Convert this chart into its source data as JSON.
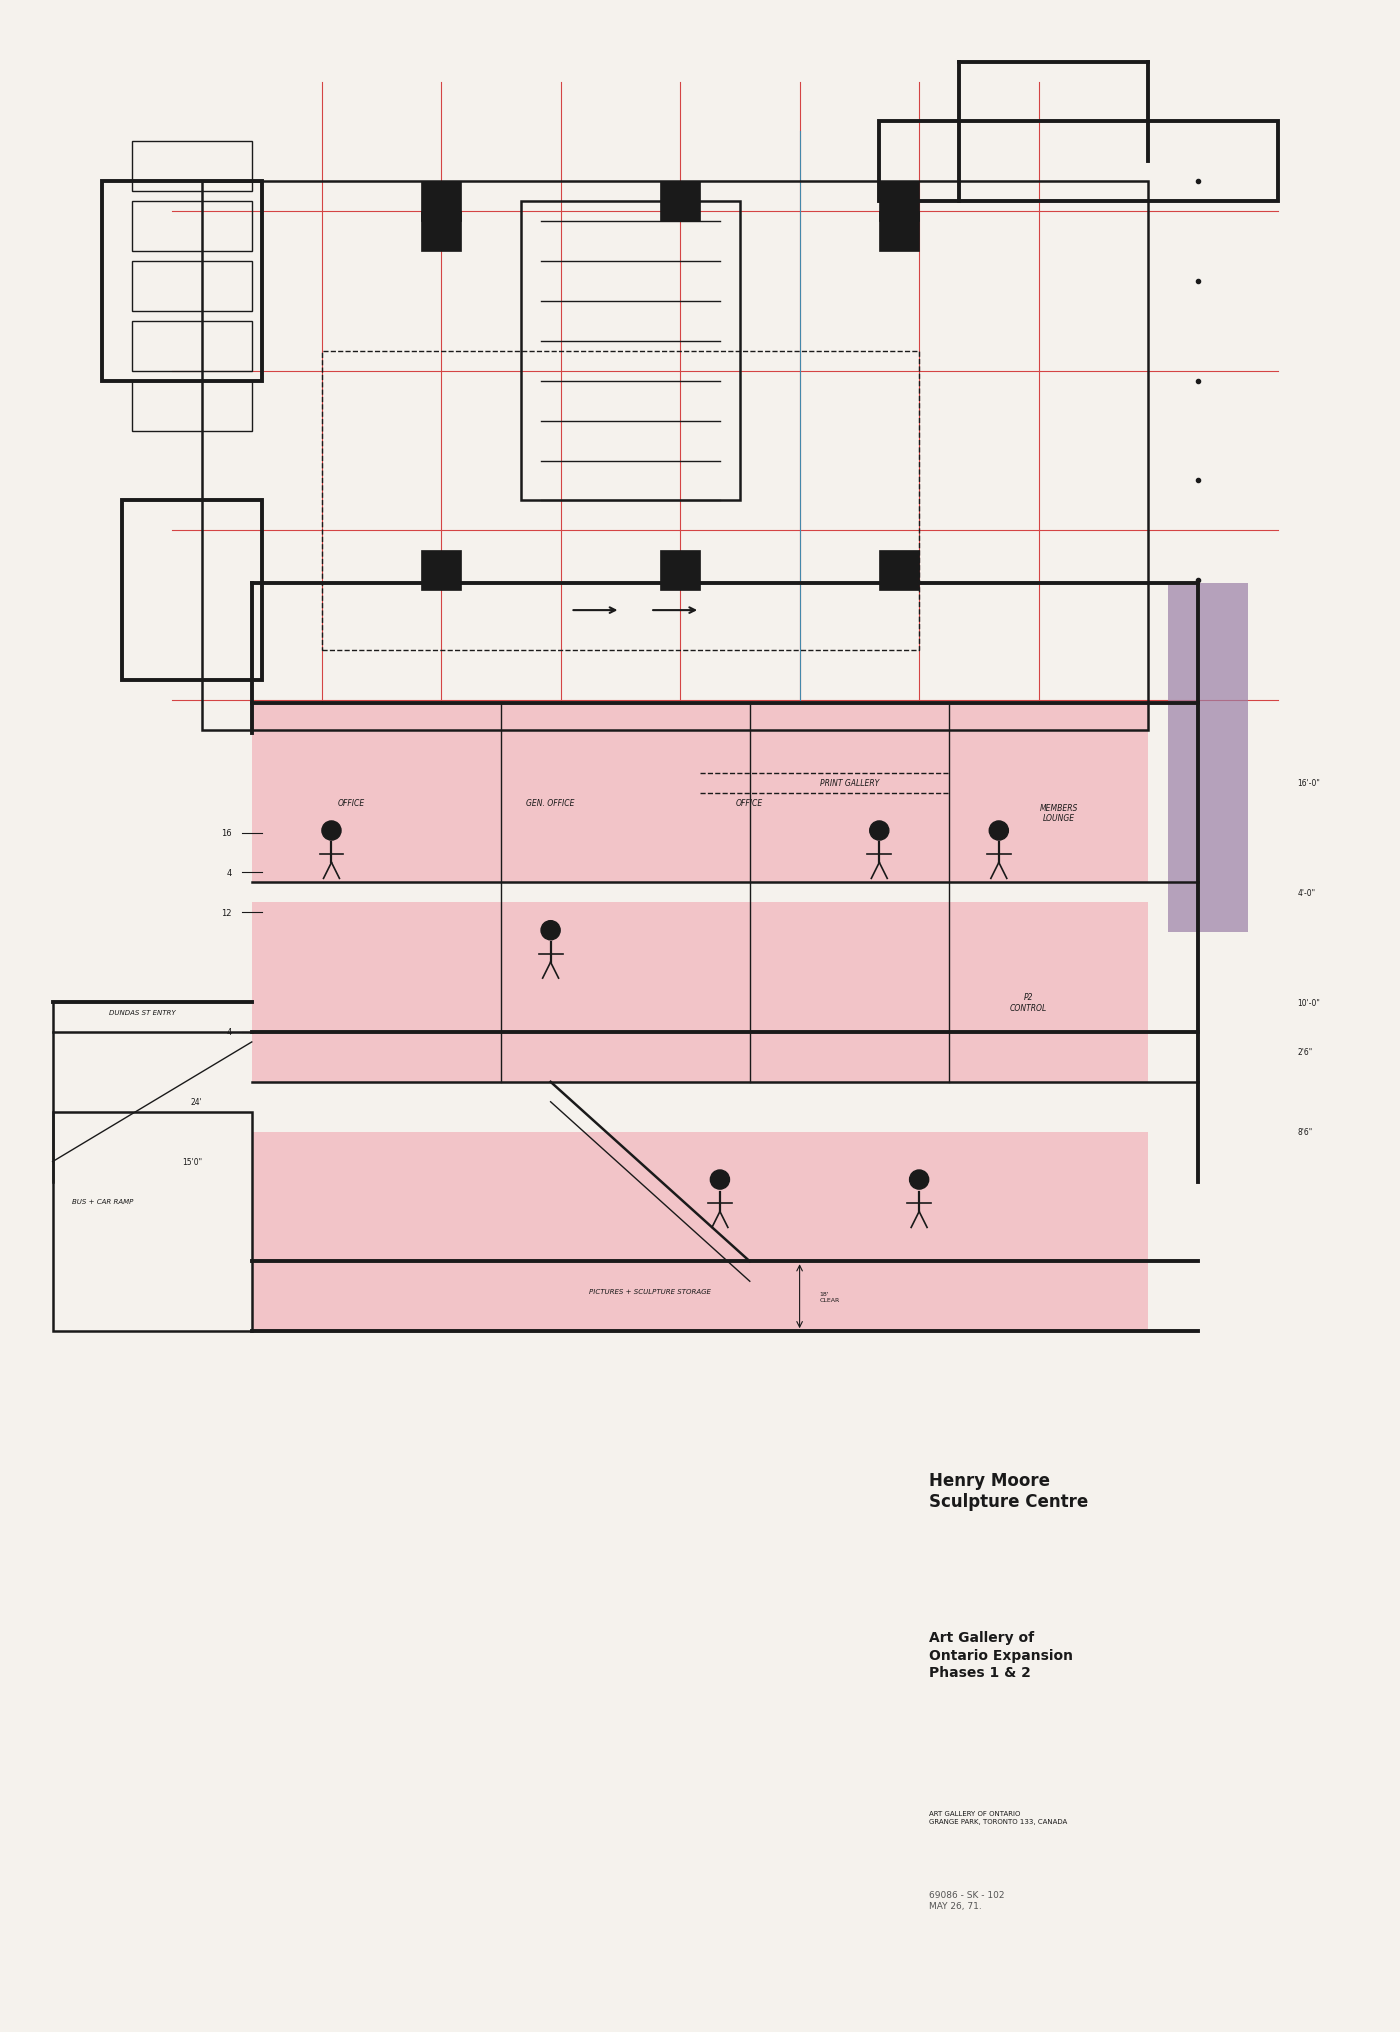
{
  "paper_color": "#f5f2ed",
  "ink_color": "#1a1a1a",
  "pink_fill": "#f2c4c8",
  "purple_accent": "#9b7fa6",
  "red_line_color": "#d44444",
  "blue_line_color": "#4488aa",
  "title_main": "Henry Moore\nSculpture Centre",
  "title_sub": "Art Gallery of\nOntario Expansion\nPhases 1 & 2",
  "title_small": "ART GALLERY OF ONTARIO\nGRANGE PARK, TORONTO 133, CANADA",
  "title_hand": "69086 - SK - 102\nMAY 26, 71.",
  "section_labels": {
    "office": "OFFICE",
    "gen_office": "GEN. OFFICE",
    "office2": "OFFICE",
    "print_gallery": "PRINT GALLERY",
    "members_lounge": "MEMBERS\nLOUNGE",
    "control": "P2\nCONTROL",
    "pictures_storage": "PICTURES + SCULPTURE STORAGE",
    "dundas_entry": "DUNDAS ST ENTRY",
    "bus_car_ramp": "BUS + CAR RAMP"
  },
  "dim_labels_left": [
    "4",
    "12",
    "4",
    "16"
  ],
  "dim_labels_right": [
    "16'-0\"",
    "4'-0\"",
    "10'-0\"",
    "2'6\"",
    "8'6\""
  ],
  "dim_left_extra": [
    "24'",
    "15'0\""
  ]
}
